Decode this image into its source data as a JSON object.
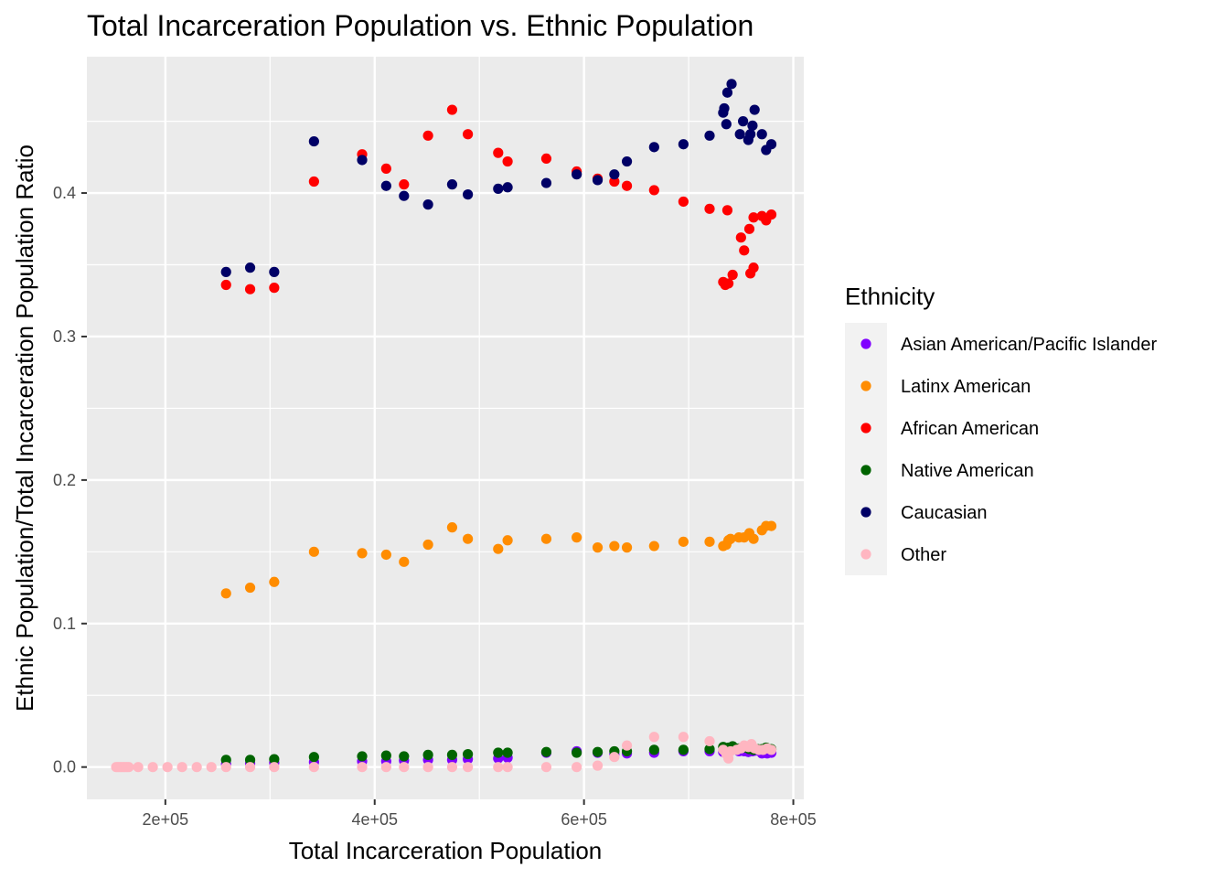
{
  "chart_data": {
    "type": "scatter",
    "title": "Total Incarceration Population vs. Ethnic Population",
    "xlabel": "Total Incarceration Population",
    "ylabel": "Ethnic Population/Total Incarceration Population Ratio",
    "xlim": [
      125000,
      810000
    ],
    "ylim": [
      -0.0225,
      0.495
    ],
    "x_ticks": [
      200000,
      400000,
      600000,
      800000
    ],
    "x_tick_labels": [
      "2e+05",
      "4e+05",
      "6e+05",
      "8e+05"
    ],
    "y_ticks": [
      0.0,
      0.1,
      0.2,
      0.3,
      0.4
    ],
    "y_tick_labels": [
      "0.0",
      "0.1",
      "0.2",
      "0.3",
      "0.4"
    ],
    "grid": true,
    "legend": {
      "title": "Ethnicity",
      "position": "right"
    },
    "series": [
      {
        "name": "Asian American/Pacific Islander",
        "color": "#8000ff",
        "points": [
          [
            258000,
            0.002
          ],
          [
            281000,
            0.0025
          ],
          [
            304000,
            0.003
          ],
          [
            342000,
            0.0035
          ],
          [
            388000,
            0.004
          ],
          [
            411000,
            0.004
          ],
          [
            428000,
            0.0045
          ],
          [
            451000,
            0.005
          ],
          [
            474000,
            0.005
          ],
          [
            489000,
            0.0055
          ],
          [
            518000,
            0.006
          ],
          [
            527000,
            0.0065
          ],
          [
            564000,
            0.01
          ],
          [
            593000,
            0.011
          ],
          [
            613000,
            0.01
          ],
          [
            629000,
            0.009
          ],
          [
            641000,
            0.0095
          ],
          [
            667000,
            0.01
          ],
          [
            695000,
            0.011
          ],
          [
            720000,
            0.011
          ],
          [
            733000,
            0.0105
          ],
          [
            738000,
            0.011
          ],
          [
            748000,
            0.011
          ],
          [
            753000,
            0.011
          ],
          [
            757000,
            0.0105
          ],
          [
            761000,
            0.011
          ],
          [
            764000,
            0.0115
          ],
          [
            770000,
            0.0095
          ],
          [
            775000,
            0.0095
          ],
          [
            779000,
            0.01
          ]
        ]
      },
      {
        "name": "Latinx American",
        "color": "#ff8c00",
        "points": [
          [
            258000,
            0.121
          ],
          [
            281000,
            0.125
          ],
          [
            304000,
            0.129
          ],
          [
            342000,
            0.15
          ],
          [
            388000,
            0.149
          ],
          [
            411000,
            0.148
          ],
          [
            428000,
            0.143
          ],
          [
            451000,
            0.155
          ],
          [
            474000,
            0.167
          ],
          [
            489000,
            0.159
          ],
          [
            518000,
            0.152
          ],
          [
            527000,
            0.158
          ],
          [
            564000,
            0.159
          ],
          [
            593000,
            0.16
          ],
          [
            613000,
            0.153
          ],
          [
            629000,
            0.154
          ],
          [
            641000,
            0.153
          ],
          [
            667000,
            0.154
          ],
          [
            695000,
            0.157
          ],
          [
            720000,
            0.157
          ],
          [
            733000,
            0.154
          ],
          [
            736000,
            0.155
          ],
          [
            738000,
            0.158
          ],
          [
            740000,
            0.159
          ],
          [
            748000,
            0.16
          ],
          [
            753000,
            0.16
          ],
          [
            758000,
            0.163
          ],
          [
            762000,
            0.159
          ],
          [
            770000,
            0.165
          ],
          [
            774000,
            0.168
          ],
          [
            779000,
            0.168
          ]
        ]
      },
      {
        "name": "African American",
        "color": "#ff0000",
        "points": [
          [
            258000,
            0.336
          ],
          [
            281000,
            0.333
          ],
          [
            304000,
            0.334
          ],
          [
            342000,
            0.408
          ],
          [
            388000,
            0.427
          ],
          [
            411000,
            0.417
          ],
          [
            428000,
            0.406
          ],
          [
            451000,
            0.44
          ],
          [
            474000,
            0.458
          ],
          [
            489000,
            0.441
          ],
          [
            518000,
            0.428
          ],
          [
            527000,
            0.422
          ],
          [
            564000,
            0.424
          ],
          [
            593000,
            0.415
          ],
          [
            613000,
            0.41
          ],
          [
            629000,
            0.408
          ],
          [
            641000,
            0.405
          ],
          [
            667000,
            0.402
          ],
          [
            695000,
            0.394
          ],
          [
            720000,
            0.389
          ],
          [
            733000,
            0.338
          ],
          [
            735000,
            0.336
          ],
          [
            738000,
            0.337
          ],
          [
            737000,
            0.388
          ],
          [
            742000,
            0.343
          ],
          [
            750000,
            0.369
          ],
          [
            753000,
            0.36
          ],
          [
            758000,
            0.375
          ],
          [
            759000,
            0.344
          ],
          [
            762000,
            0.348
          ],
          [
            762000,
            0.383
          ],
          [
            770000,
            0.384
          ],
          [
            774000,
            0.381
          ],
          [
            779000,
            0.385
          ]
        ]
      },
      {
        "name": "Native American",
        "color": "#006400",
        "points": [
          [
            258000,
            0.005
          ],
          [
            281000,
            0.005
          ],
          [
            304000,
            0.0055
          ],
          [
            342000,
            0.007
          ],
          [
            388000,
            0.0075
          ],
          [
            411000,
            0.008
          ],
          [
            428000,
            0.0075
          ],
          [
            451000,
            0.0085
          ],
          [
            474000,
            0.0085
          ],
          [
            489000,
            0.009
          ],
          [
            518000,
            0.01
          ],
          [
            527000,
            0.01
          ],
          [
            564000,
            0.0105
          ],
          [
            593000,
            0.01
          ],
          [
            613000,
            0.0105
          ],
          [
            629000,
            0.011
          ],
          [
            641000,
            0.011
          ],
          [
            667000,
            0.012
          ],
          [
            695000,
            0.012
          ],
          [
            720000,
            0.0125
          ],
          [
            733000,
            0.014
          ],
          [
            738000,
            0.0135
          ],
          [
            742000,
            0.0145
          ],
          [
            748000,
            0.013
          ],
          [
            753000,
            0.0135
          ],
          [
            758000,
            0.0125
          ],
          [
            762000,
            0.012
          ],
          [
            766000,
            0.0125
          ],
          [
            770000,
            0.0125
          ],
          [
            774000,
            0.0135
          ],
          [
            779000,
            0.0125
          ]
        ]
      },
      {
        "name": "Caucasian",
        "color": "#000066",
        "points": [
          [
            258000,
            0.345
          ],
          [
            281000,
            0.348
          ],
          [
            304000,
            0.345
          ],
          [
            342000,
            0.436
          ],
          [
            388000,
            0.423
          ],
          [
            411000,
            0.405
          ],
          [
            428000,
            0.398
          ],
          [
            451000,
            0.392
          ],
          [
            474000,
            0.406
          ],
          [
            489000,
            0.399
          ],
          [
            518000,
            0.403
          ],
          [
            527000,
            0.404
          ],
          [
            564000,
            0.407
          ],
          [
            593000,
            0.413
          ],
          [
            613000,
            0.409
          ],
          [
            629000,
            0.413
          ],
          [
            641000,
            0.422
          ],
          [
            667000,
            0.432
          ],
          [
            695000,
            0.434
          ],
          [
            720000,
            0.44
          ],
          [
            733000,
            0.456
          ],
          [
            734000,
            0.459
          ],
          [
            736000,
            0.448
          ],
          [
            737000,
            0.47
          ],
          [
            741000,
            0.476
          ],
          [
            749000,
            0.441
          ],
          [
            752000,
            0.45
          ],
          [
            757000,
            0.437
          ],
          [
            759000,
            0.441
          ],
          [
            761000,
            0.447
          ],
          [
            763000,
            0.458
          ],
          [
            770000,
            0.441
          ],
          [
            774000,
            0.43
          ],
          [
            779000,
            0.434
          ]
        ]
      },
      {
        "name": "Other",
        "color": "#ffb6c1",
        "points": [
          [
            153000,
            0.0
          ],
          [
            155000,
            0.0
          ],
          [
            157000,
            0.0
          ],
          [
            159000,
            0.0
          ],
          [
            161000,
            0.0
          ],
          [
            163000,
            0.0
          ],
          [
            165000,
            0.0
          ],
          [
            174000,
            0.0
          ],
          [
            188000,
            0.0
          ],
          [
            202000,
            0.0
          ],
          [
            216000,
            0.0
          ],
          [
            230000,
            0.0
          ],
          [
            244000,
            0.0
          ],
          [
            258000,
            0.0
          ],
          [
            281000,
            0.0
          ],
          [
            304000,
            0.0
          ],
          [
            342000,
            0.0
          ],
          [
            388000,
            0.0
          ],
          [
            411000,
            0.0
          ],
          [
            428000,
            0.0
          ],
          [
            451000,
            0.0
          ],
          [
            474000,
            0.0
          ],
          [
            489000,
            0.0
          ],
          [
            518000,
            0.0
          ],
          [
            527000,
            0.0
          ],
          [
            564000,
            0.0
          ],
          [
            593000,
            0.0
          ],
          [
            613000,
            0.001
          ],
          [
            629000,
            0.007
          ],
          [
            641000,
            0.015
          ],
          [
            667000,
            0.021
          ],
          [
            695000,
            0.021
          ],
          [
            720000,
            0.018
          ],
          [
            733000,
            0.012
          ],
          [
            736000,
            0.009
          ],
          [
            738000,
            0.006
          ],
          [
            740000,
            0.011
          ],
          [
            746000,
            0.012
          ],
          [
            750000,
            0.013
          ],
          [
            753000,
            0.015
          ],
          [
            757000,
            0.014
          ],
          [
            760000,
            0.016
          ],
          [
            763000,
            0.013
          ],
          [
            767000,
            0.012
          ],
          [
            771000,
            0.012
          ],
          [
            775000,
            0.013
          ],
          [
            779000,
            0.012
          ]
        ]
      }
    ]
  }
}
